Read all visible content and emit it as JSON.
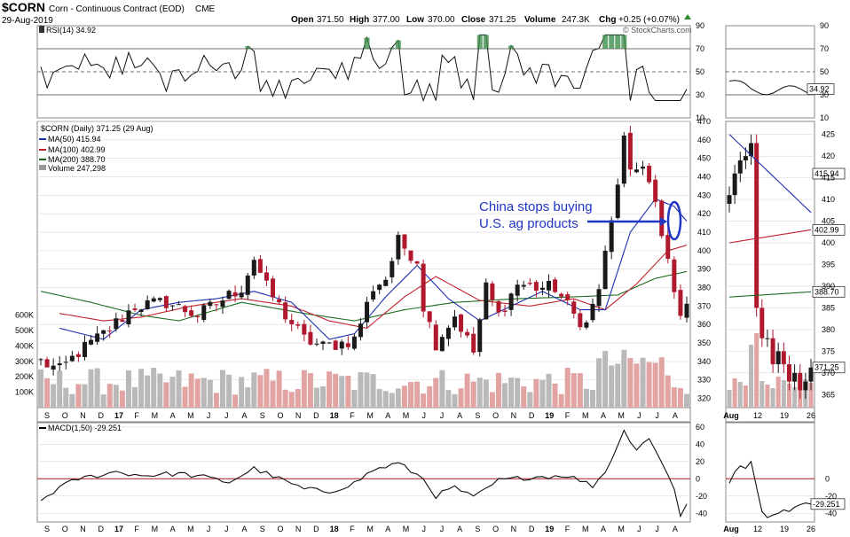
{
  "header": {
    "symbol": "$CORN",
    "name": "Corn - Continuous Contract (EOD)",
    "exchange": "CME",
    "date": "29-Aug-2019",
    "open_label": "Open",
    "open": "371.50",
    "high_label": "High",
    "high": "377.00",
    "low_label": "Low",
    "low": "370.00",
    "close_label": "Close",
    "close": "371.25",
    "volume_label": "Volume",
    "volume": "247.3K",
    "chg_label": "Chg",
    "chg": "+0.25 (+0.07%)",
    "watermark": "© StockCharts.com"
  },
  "colors": {
    "up": "#1a1a1a",
    "down": "#b0182e",
    "ma50": "#1b2fb0",
    "ma100": "#c2222f",
    "ma200": "#1d6a1d",
    "vol_up": "#b9b9b9",
    "vol_down": "#e2a3a3",
    "rsi_fill": "#3f8f4f",
    "annotation": "#1f35c4",
    "grid": "#d8d8d8"
  },
  "chart_data": [
    {
      "type": "line",
      "panel": "rsi",
      "title": "RSI(14) 34.92",
      "ylim": [
        10,
        90
      ],
      "yticks": [
        "90",
        "70",
        "50",
        "30",
        "10"
      ],
      "reference_lines": [
        70,
        50,
        30
      ],
      "zoom_tag": "34.92",
      "zoom_value": 34.92
    },
    {
      "type": "candlestick",
      "panel": "price",
      "title": "$CORN (Daily) 371.25 (29 Aug)",
      "ylim": [
        315,
        470
      ],
      "yticks": [
        "470",
        "460",
        "450",
        "440",
        "430",
        "420",
        "410",
        "400",
        "390",
        "380",
        "370",
        "360",
        "350",
        "340",
        "330",
        "320"
      ],
      "volume_ticks": [
        "600K",
        "500K",
        "400K",
        "300K",
        "200K",
        "100K"
      ],
      "volume_ylim": [
        0,
        650
      ],
      "legend": [
        {
          "label": "$CORN (Daily) 371.25 (29 Aug)"
        },
        {
          "label": "MA(50) 415.94"
        },
        {
          "label": "MA(100) 402.99"
        },
        {
          "label": "MA(200) 388.70"
        },
        {
          "label": "Volume 247,298"
        }
      ],
      "x_labels": [
        "S",
        "O",
        "N",
        "D",
        "17",
        "F",
        "M",
        "A",
        "M",
        "J",
        "J",
        "A",
        "S",
        "O",
        "N",
        "D",
        "18",
        "F",
        "M",
        "A",
        "M",
        "J",
        "J",
        "A",
        "S",
        "O",
        "N",
        "D",
        "19",
        "F",
        "M",
        "A",
        "M",
        "J",
        "J",
        "A"
      ],
      "keypoints_close": [
        {
          "t": 0,
          "v": 340
        },
        {
          "t": 3,
          "v": 335
        },
        {
          "t": 6,
          "v": 345
        },
        {
          "t": 10,
          "v": 355
        },
        {
          "t": 15,
          "v": 370
        },
        {
          "t": 20,
          "v": 372
        },
        {
          "t": 25,
          "v": 365
        },
        {
          "t": 32,
          "v": 380
        },
        {
          "t": 34,
          "v": 396
        },
        {
          "t": 36,
          "v": 380
        },
        {
          "t": 39,
          "v": 365
        },
        {
          "t": 42,
          "v": 352
        },
        {
          "t": 45,
          "v": 348
        },
        {
          "t": 48,
          "v": 350
        },
        {
          "t": 50,
          "v": 352
        },
        {
          "t": 53,
          "v": 380
        },
        {
          "t": 55,
          "v": 385
        },
        {
          "t": 57,
          "v": 405
        },
        {
          "t": 60,
          "v": 395
        },
        {
          "t": 61,
          "v": 370
        },
        {
          "t": 63,
          "v": 350
        },
        {
          "t": 66,
          "v": 365
        },
        {
          "t": 69,
          "v": 345
        },
        {
          "t": 71,
          "v": 380
        },
        {
          "t": 73,
          "v": 365
        },
        {
          "t": 76,
          "v": 382
        },
        {
          "t": 79,
          "v": 380
        },
        {
          "t": 82,
          "v": 380
        },
        {
          "t": 85,
          "v": 365
        },
        {
          "t": 87,
          "v": 360
        },
        {
          "t": 89,
          "v": 380
        },
        {
          "t": 91,
          "v": 415
        },
        {
          "t": 93,
          "v": 460
        },
        {
          "t": 94,
          "v": 440
        },
        {
          "t": 96,
          "v": 448
        },
        {
          "t": 98,
          "v": 425
        },
        {
          "t": 99,
          "v": 405
        },
        {
          "t": 100,
          "v": 395
        },
        {
          "t": 101,
          "v": 376
        },
        {
          "t": 102,
          "v": 368
        },
        {
          "t": 103,
          "v": 371.25
        }
      ],
      "ma50": [
        {
          "t": 3,
          "v": 358
        },
        {
          "t": 10,
          "v": 352
        },
        {
          "t": 16,
          "v": 368
        },
        {
          "t": 22,
          "v": 372
        },
        {
          "t": 28,
          "v": 374
        },
        {
          "t": 34,
          "v": 378
        },
        {
          "t": 40,
          "v": 372
        },
        {
          "t": 46,
          "v": 352
        },
        {
          "t": 50,
          "v": 355
        },
        {
          "t": 55,
          "v": 375
        },
        {
          "t": 60,
          "v": 392
        },
        {
          "t": 65,
          "v": 374
        },
        {
          "t": 70,
          "v": 362
        },
        {
          "t": 75,
          "v": 370
        },
        {
          "t": 80,
          "v": 378
        },
        {
          "t": 86,
          "v": 368
        },
        {
          "t": 90,
          "v": 368
        },
        {
          "t": 94,
          "v": 410
        },
        {
          "t": 98,
          "v": 428
        },
        {
          "t": 101,
          "v": 424
        },
        {
          "t": 103,
          "v": 415.94
        }
      ],
      "ma100": [
        {
          "t": 3,
          "v": 366
        },
        {
          "t": 10,
          "v": 362
        },
        {
          "t": 16,
          "v": 364
        },
        {
          "t": 24,
          "v": 370
        },
        {
          "t": 32,
          "v": 374
        },
        {
          "t": 40,
          "v": 370
        },
        {
          "t": 46,
          "v": 362
        },
        {
          "t": 52,
          "v": 358
        },
        {
          "t": 58,
          "v": 375
        },
        {
          "t": 63,
          "v": 386
        },
        {
          "t": 70,
          "v": 373
        },
        {
          "t": 78,
          "v": 370
        },
        {
          "t": 85,
          "v": 374
        },
        {
          "t": 90,
          "v": 368
        },
        {
          "t": 95,
          "v": 382
        },
        {
          "t": 100,
          "v": 400
        },
        {
          "t": 103,
          "v": 402.99
        }
      ],
      "ma200": [
        {
          "t": 0,
          "v": 378
        },
        {
          "t": 8,
          "v": 372
        },
        {
          "t": 16,
          "v": 365
        },
        {
          "t": 22,
          "v": 362
        },
        {
          "t": 32,
          "v": 372
        },
        {
          "t": 42,
          "v": 366
        },
        {
          "t": 50,
          "v": 362
        },
        {
          "t": 58,
          "v": 368
        },
        {
          "t": 66,
          "v": 372
        },
        {
          "t": 76,
          "v": 374
        },
        {
          "t": 85,
          "v": 375
        },
        {
          "t": 92,
          "v": 376
        },
        {
          "t": 98,
          "v": 385
        },
        {
          "t": 103,
          "v": 388.7
        }
      ],
      "zoom_yticks": [
        "425",
        "420",
        "415",
        "410",
        "405",
        "400",
        "395",
        "390",
        "385",
        "380",
        "375",
        "370",
        "365"
      ],
      "zoom_ylim": [
        362,
        428
      ],
      "zoom_tags": [
        {
          "label": "415.94",
          "v": 415.94
        },
        {
          "label": "402.99",
          "v": 402.99
        },
        {
          "label": "388.70",
          "v": 388.7
        },
        {
          "label": "371.25",
          "v": 371.25
        }
      ]
    },
    {
      "type": "line",
      "panel": "macd",
      "title": "MACD(1,50) -29.251",
      "ylim": [
        -50,
        65
      ],
      "yticks": [
        "60",
        "40",
        "20",
        "0",
        "-20",
        "-40"
      ],
      "keypoints": [
        {
          "t": 0,
          "v": -25
        },
        {
          "t": 3,
          "v": -10
        },
        {
          "t": 6,
          "v": 0
        },
        {
          "t": 12,
          "v": 8
        },
        {
          "t": 16,
          "v": 4
        },
        {
          "t": 22,
          "v": 6
        },
        {
          "t": 26,
          "v": 2
        },
        {
          "t": 30,
          "v": -4
        },
        {
          "t": 34,
          "v": 12
        },
        {
          "t": 38,
          "v": 0
        },
        {
          "t": 42,
          "v": -12
        },
        {
          "t": 46,
          "v": -15
        },
        {
          "t": 50,
          "v": -5
        },
        {
          "t": 53,
          "v": 10
        },
        {
          "t": 57,
          "v": 18
        },
        {
          "t": 61,
          "v": 0
        },
        {
          "t": 63,
          "v": -20
        },
        {
          "t": 66,
          "v": -10
        },
        {
          "t": 69,
          "v": -22
        },
        {
          "t": 73,
          "v": -2
        },
        {
          "t": 78,
          "v": 2
        },
        {
          "t": 84,
          "v": 4
        },
        {
          "t": 88,
          "v": -8
        },
        {
          "t": 90,
          "v": 8
        },
        {
          "t": 93,
          "v": 55
        },
        {
          "t": 95,
          "v": 35
        },
        {
          "t": 97,
          "v": 48
        },
        {
          "t": 99,
          "v": 18
        },
        {
          "t": 101,
          "v": -10
        },
        {
          "t": 102,
          "v": -42
        },
        {
          "t": 103,
          "v": -29.251
        }
      ],
      "zoom_yticks": [
        "0",
        "-20",
        "-40"
      ],
      "zoom_tag": "-29.251",
      "zoom_x_labels": [
        "Aug",
        "12",
        "19",
        "26"
      ]
    }
  ],
  "annotation": {
    "line1": "China stops buying",
    "line2": "U.S. ag products"
  },
  "zoom_price_close_points": [
    {
      "d": 0,
      "v": 411
    },
    {
      "d": 1,
      "v": 416
    },
    {
      "d": 2,
      "v": 419
    },
    {
      "d": 3,
      "v": 420
    },
    {
      "d": 4,
      "v": 423
    },
    {
      "d": 5,
      "v": 385
    },
    {
      "d": 6,
      "v": 378
    },
    {
      "d": 7,
      "v": 378
    },
    {
      "d": 8,
      "v": 372
    },
    {
      "d": 9,
      "v": 375
    },
    {
      "d": 10,
      "v": 372
    },
    {
      "d": 11,
      "v": 368
    },
    {
      "d": 12,
      "v": 370
    },
    {
      "d": 13,
      "v": 366
    },
    {
      "d": 14,
      "v": 368
    },
    {
      "d": 15,
      "v": 371.25
    }
  ]
}
